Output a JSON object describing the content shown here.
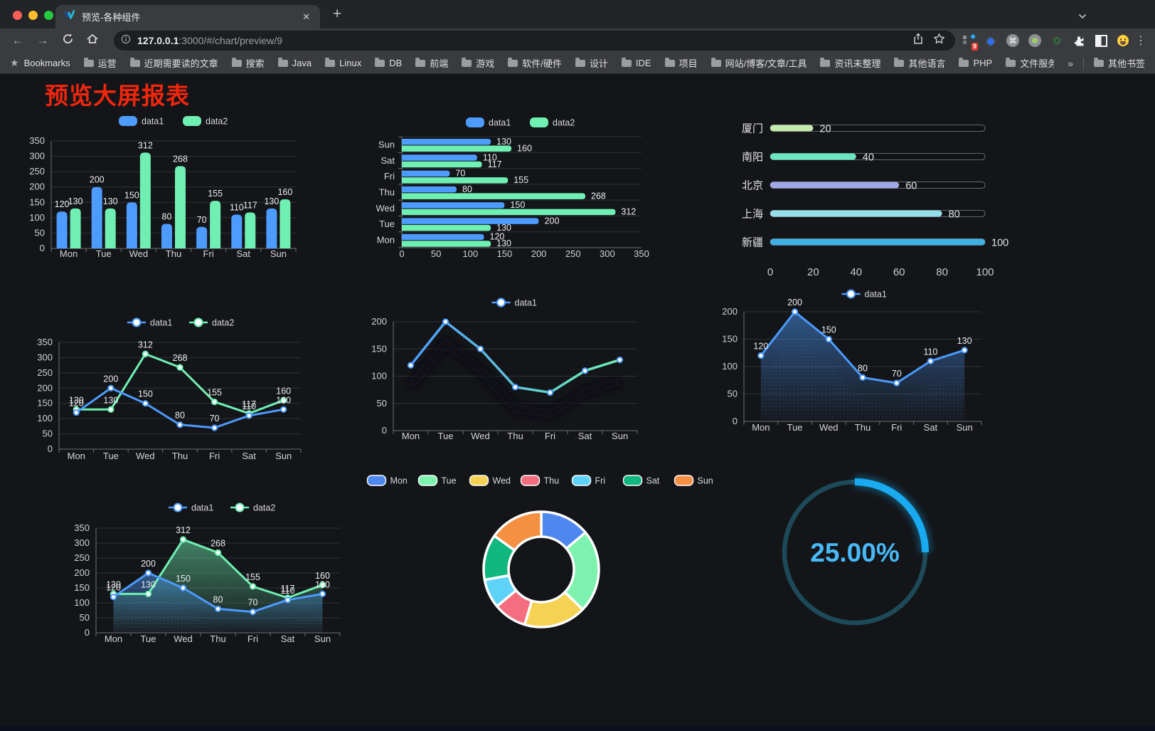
{
  "browser": {
    "tab_title": "预览-各种组件",
    "url_host": "127.0.0.1",
    "url_rest": ":3000/#/chart/preview/9",
    "new_tab_label": "+",
    "close_label": "✕",
    "bookmarks_label": "Bookmarks",
    "bookmarks": [
      "运营",
      "近期需要读的文章",
      "搜索",
      "Java",
      "Linux",
      "DB",
      "前端",
      "游戏",
      "软件/硬件",
      "设计",
      "IDE",
      "项目",
      "网站/博客/文章/工具",
      "资讯未整理",
      "其他语言",
      "PHP",
      "文件服务器"
    ],
    "bookmarks_overflow": "»",
    "other_bookmarks": "其他书签",
    "extension_badge": "9"
  },
  "page": {
    "title": "预览大屏报表",
    "title_color": "#f2260d",
    "background": "#141519"
  },
  "colors": {
    "data1_blue": "#4c9bfd",
    "data2_green": "#6ff0b2",
    "axis": "#6d7075",
    "grid": "#2e3138",
    "tick_label": "#cfd1d4",
    "value_label": "#eceded"
  },
  "chart_data": [
    {
      "id": "bar-grouped",
      "type": "bar",
      "categories": [
        "Mon",
        "Tue",
        "Wed",
        "Thu",
        "Fri",
        "Sat",
        "Sun"
      ],
      "series": [
        {
          "name": "data1",
          "color": "#4c9bfd",
          "values": [
            120,
            200,
            150,
            80,
            70,
            110,
            130
          ]
        },
        {
          "name": "data2",
          "color": "#6ff0b2",
          "values": [
            130,
            130,
            312,
            268,
            155,
            117,
            160
          ]
        }
      ],
      "ylim": [
        0,
        350
      ],
      "ytick": 50,
      "legend_position": "top",
      "grid": true
    },
    {
      "id": "bar-horizontal",
      "type": "bar",
      "orientation": "horizontal",
      "categories": [
        "Mon",
        "Tue",
        "Wed",
        "Thu",
        "Fri",
        "Sat",
        "Sun"
      ],
      "series": [
        {
          "name": "data1",
          "color": "#4c9bfd",
          "values": [
            120,
            200,
            150,
            80,
            70,
            110,
            130
          ]
        },
        {
          "name": "data2",
          "color": "#6ff0b2",
          "values": [
            130,
            130,
            312,
            268,
            155,
            117,
            160
          ]
        }
      ],
      "xlim": [
        0,
        350
      ],
      "xtick": 50,
      "legend_position": "top"
    },
    {
      "id": "progress-bars",
      "type": "bar",
      "orientation": "horizontal-progress",
      "max": 100,
      "xticks": [
        0,
        20,
        40,
        60,
        80,
        100
      ],
      "rows": [
        {
          "label": "厦门",
          "value": 20,
          "color": "#c4ebad"
        },
        {
          "label": "南阳",
          "value": 40,
          "color": "#6be6c1"
        },
        {
          "label": "北京",
          "value": 60,
          "color": "#a0a7e6"
        },
        {
          "label": "上海",
          "value": 80,
          "color": "#96dee8"
        },
        {
          "label": "新疆",
          "value": 100,
          "color": "#3fb1e3"
        }
      ]
    },
    {
      "id": "line-basic",
      "type": "line",
      "categories": [
        "Mon",
        "Tue",
        "Wed",
        "Thu",
        "Fri",
        "Sat",
        "Sun"
      ],
      "series": [
        {
          "name": "data1",
          "color": "#4c9bfd",
          "values": [
            120,
            200,
            150,
            80,
            70,
            110,
            130
          ]
        },
        {
          "name": "data2",
          "color": "#6ff0b2",
          "values": [
            130,
            130,
            312,
            268,
            155,
            117,
            160
          ]
        }
      ],
      "ylim": [
        0,
        350
      ],
      "ytick": 50,
      "show_labels": true
    },
    {
      "id": "line-gradient-shadow",
      "type": "line",
      "categories": [
        "Mon",
        "Tue",
        "Wed",
        "Thu",
        "Fri",
        "Sat",
        "Sun"
      ],
      "series": [
        {
          "name": "data1",
          "gradient": [
            "#4c9bfd",
            "#6ff0b2"
          ],
          "color": "#4c9bfd",
          "values": [
            120,
            200,
            150,
            80,
            70,
            110,
            130
          ]
        }
      ],
      "ylim": [
        0,
        200
      ],
      "ytick": 50,
      "show_labels": false
    },
    {
      "id": "area-single",
      "type": "area",
      "categories": [
        "Mon",
        "Tue",
        "Wed",
        "Thu",
        "Fri",
        "Sat",
        "Sun"
      ],
      "series": [
        {
          "name": "data1",
          "color": "#4c9bfd",
          "values": [
            120,
            200,
            150,
            80,
            70,
            110,
            130
          ]
        }
      ],
      "ylim": [
        0,
        200
      ],
      "ytick": 50,
      "show_labels": true
    },
    {
      "id": "area-double",
      "type": "area",
      "categories": [
        "Mon",
        "Tue",
        "Wed",
        "Thu",
        "Fri",
        "Sat",
        "Sun"
      ],
      "series": [
        {
          "name": "data1",
          "color": "#4c9bfd",
          "values": [
            120,
            200,
            150,
            80,
            70,
            110,
            130
          ]
        },
        {
          "name": "data2",
          "color": "#6ff0b2",
          "values": [
            130,
            130,
            312,
            268,
            155,
            117,
            160
          ]
        }
      ],
      "ylim": [
        0,
        350
      ],
      "ytick": 50,
      "show_labels": true
    },
    {
      "id": "donut",
      "type": "pie",
      "donut": true,
      "categories": [
        "Mon",
        "Tue",
        "Wed",
        "Thu",
        "Fri",
        "Sat",
        "Sun"
      ],
      "values": [
        120,
        200,
        150,
        80,
        70,
        110,
        130
      ],
      "colors": [
        "#4e87ee",
        "#7df2ae",
        "#f5d253",
        "#f56e7f",
        "#5fd3f7",
        "#10b77f",
        "#f58f42"
      ],
      "legend_position": "top"
    },
    {
      "id": "gauge",
      "type": "gauge",
      "percent": 25,
      "label": "25.00%",
      "color": "#19aaf0",
      "track_color": "#1d4a58",
      "text_color": "#49b8f7"
    }
  ]
}
